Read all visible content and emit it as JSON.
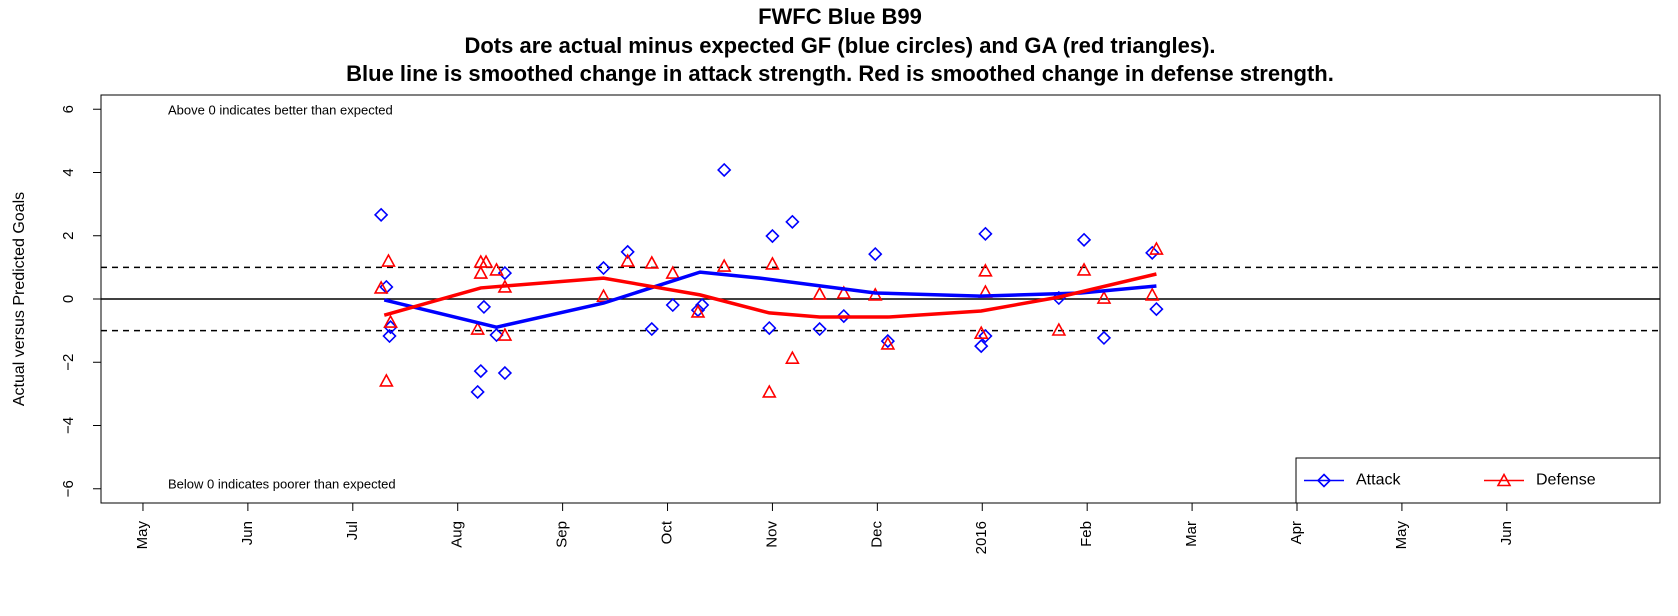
{
  "chart_data": {
    "type": "scatter",
    "title": "FWFC Blue B99",
    "subtitle": [
      "Dots are actual minus expected GF (blue circles) and GA (red triangles).",
      "Blue line is smoothed change in attack strength. Red is smoothed change in defense strength."
    ],
    "y_label": "Actual versus Predicted Goals",
    "annotations": [
      "Above 0 indicates better than expected",
      "Below 0 indicates poorer than expected"
    ],
    "xlim": [
      4.6,
      19.46
    ],
    "xticks": [
      {
        "value": 5,
        "label": "May"
      },
      {
        "value": 6,
        "label": "Jun"
      },
      {
        "value": 7,
        "label": "Jul"
      },
      {
        "value": 8,
        "label": "Aug"
      },
      {
        "value": 9,
        "label": "Sep"
      },
      {
        "value": 10,
        "label": "Oct"
      },
      {
        "value": 11,
        "label": "Nov"
      },
      {
        "value": 12,
        "label": "Dec"
      },
      {
        "value": 13,
        "label": "2016"
      },
      {
        "value": 14,
        "label": "Feb"
      },
      {
        "value": 15,
        "label": "Mar"
      },
      {
        "value": 16,
        "label": "Apr"
      },
      {
        "value": 17,
        "label": "May"
      },
      {
        "value": 18,
        "label": "Jun"
      }
    ],
    "ylim": [
      -6.45,
      6.45
    ],
    "yticks": [
      {
        "value": -6,
        "label": "−6"
      },
      {
        "value": -4,
        "label": "−4"
      },
      {
        "value": -2,
        "label": "−2"
      },
      0,
      2,
      4,
      6
    ],
    "hlines": [
      {
        "value": 0,
        "style": "solid"
      },
      {
        "value": 1,
        "style": "dashed"
      },
      {
        "value": -1,
        "style": "dashed"
      }
    ],
    "legend": "bottom-right",
    "series": [
      {
        "name": "Attack",
        "color": "#0000ff",
        "marker": "diamond",
        "x": [
          7.27,
          7.32,
          7.35,
          7.36,
          8.19,
          8.22,
          8.25,
          8.37,
          8.45,
          8.45,
          9.39,
          9.62,
          9.85,
          10.05,
          10.29,
          10.33,
          10.54,
          10.97,
          11.0,
          11.19,
          11.45,
          11.68,
          11.98,
          12.1,
          12.99,
          13.03,
          13.03,
          13.73,
          13.97,
          14.16,
          14.62,
          14.66
        ],
        "values": [
          2.66,
          0.38,
          -1.17,
          -0.89,
          -2.94,
          -2.28,
          -0.25,
          -1.14,
          0.82,
          -2.34,
          0.98,
          1.49,
          -0.95,
          -0.19,
          -0.35,
          -0.19,
          4.08,
          -0.92,
          1.99,
          2.44,
          -0.95,
          -0.54,
          1.42,
          -1.33,
          -1.49,
          2.06,
          -1.17,
          0.03,
          1.87,
          -1.23,
          1.46,
          -0.32
        ],
        "smooth_x": [
          7.3,
          8.37,
          9.39,
          10.31,
          10.88,
          11.98,
          12.98,
          13.94,
          14.66
        ],
        "smooth": [
          -0.03,
          -0.89,
          -0.13,
          0.85,
          0.66,
          0.19,
          0.09,
          0.19,
          0.41
        ]
      },
      {
        "name": "Defense",
        "color": "#ff0000",
        "marker": "triangle",
        "x": [
          7.27,
          7.34,
          7.32,
          7.36,
          8.19,
          8.22,
          8.22,
          8.27,
          8.37,
          8.45,
          8.45,
          9.39,
          9.62,
          9.85,
          10.05,
          10.29,
          10.54,
          10.97,
          11.0,
          11.19,
          11.45,
          11.68,
          11.98,
          12.1,
          12.99,
          13.03,
          13.03,
          13.73,
          13.97,
          14.16,
          14.62,
          14.66
        ],
        "values": [
          0.35,
          1.2,
          -2.59,
          -0.73,
          -0.95,
          0.82,
          1.17,
          1.17,
          0.92,
          0.38,
          -1.14,
          0.09,
          1.2,
          1.14,
          0.82,
          -0.41,
          1.04,
          -2.94,
          1.11,
          -1.87,
          0.16,
          0.19,
          0.13,
          -1.42,
          -1.08,
          0.89,
          0.22,
          -0.98,
          0.92,
          0.03,
          0.13,
          1.58
        ],
        "smooth_x": [
          7.3,
          8.22,
          9.39,
          10.31,
          10.97,
          11.45,
          12.1,
          12.99,
          13.73,
          14.66
        ],
        "smooth": [
          -0.51,
          0.35,
          0.66,
          0.13,
          -0.44,
          -0.57,
          -0.57,
          -0.38,
          0.06,
          0.79
        ]
      }
    ]
  }
}
